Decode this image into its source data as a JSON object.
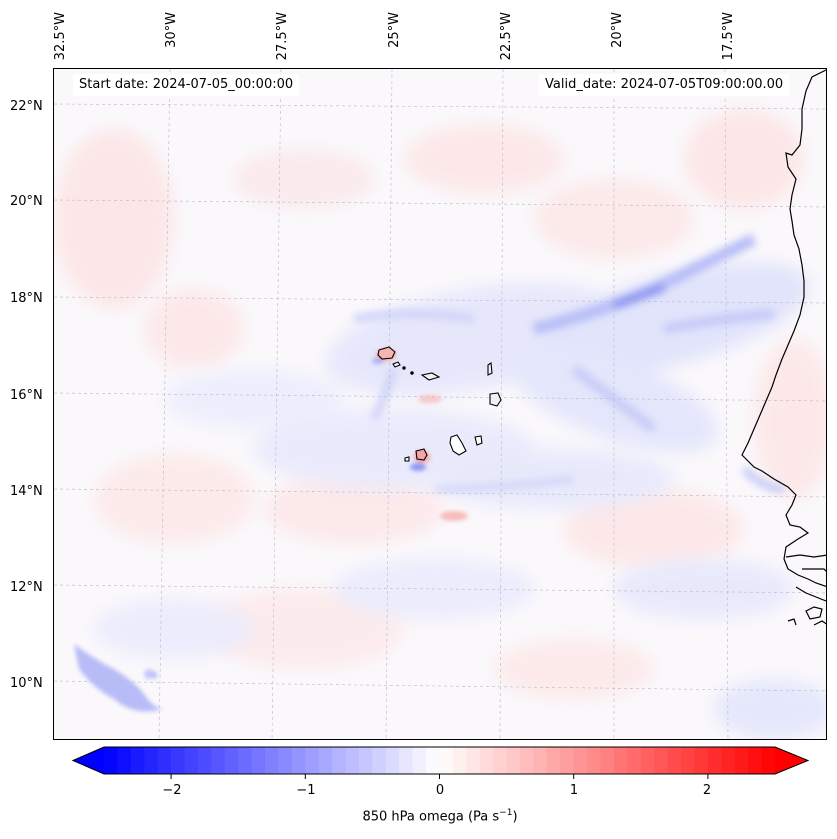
{
  "header": {
    "start_date": "Start date: 2024-07-05_00:00:00",
    "valid_date": "Valid_date: 2024-07-05T09:00:00.00"
  },
  "axes": {
    "lon_labels": [
      "32.5°W",
      "30°W",
      "27.5°W",
      "25°W",
      "22.5°W",
      "20°W",
      "17.5°W"
    ],
    "lat_labels": [
      "22°N",
      "20°N",
      "18°N",
      "16°N",
      "14°N",
      "12°N",
      "10°N"
    ]
  },
  "colorbar": {
    "label_prefix": "850 hPa omega (Pa s",
    "label_exp": "−1",
    "label_suffix": ")",
    "ticks": [
      "−2",
      "−1",
      "0",
      "1",
      "2"
    ],
    "range": [
      -2.5,
      2.5
    ],
    "cmap_low": "#0000ff",
    "cmap_mid": "#ffffff",
    "cmap_high": "#ff0000"
  },
  "map": {
    "field": "850 hPa omega",
    "region": "Cape Verde / West Africa coast",
    "coastline_color": "#000000"
  }
}
